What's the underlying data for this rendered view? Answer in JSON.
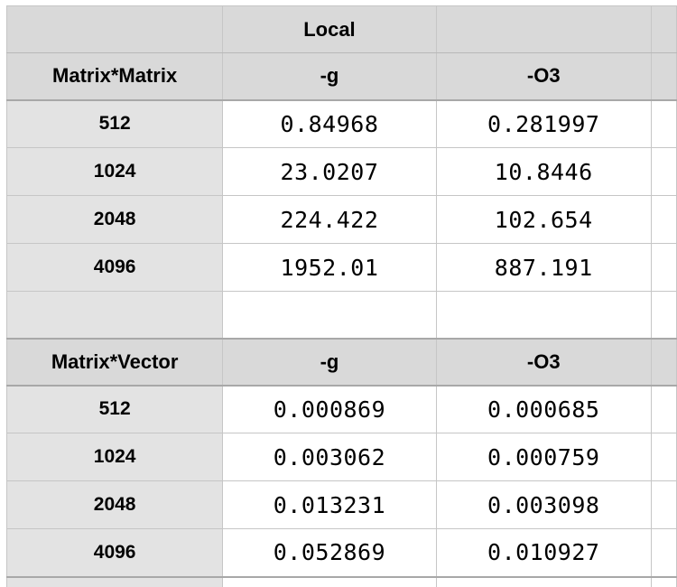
{
  "table": {
    "top_header": {
      "label": "",
      "col_g": "Local",
      "col_o3": ""
    },
    "sections": [
      {
        "title": "Matrix*Matrix",
        "col_g": "-g",
        "col_o3": "-O3",
        "rows": [
          {
            "size": "512",
            "g": "0.84968",
            "o3": "0.281997"
          },
          {
            "size": "1024",
            "g": "23.0207",
            "o3": "10.8446"
          },
          {
            "size": "2048",
            "g": "224.422",
            "o3": "102.654"
          },
          {
            "size": "4096",
            "g": "1952.01",
            "o3": "887.191"
          }
        ]
      },
      {
        "title": "Matrix*Vector",
        "col_g": "-g",
        "col_o3": "-O3",
        "rows": [
          {
            "size": "512",
            "g": "0.000869",
            "o3": "0.000685"
          },
          {
            "size": "1024",
            "g": "0.003062",
            "o3": "0.000759"
          },
          {
            "size": "2048",
            "g": "0.013231",
            "o3": "0.003098"
          },
          {
            "size": "4096",
            "g": "0.052869",
            "o3": "0.010927"
          }
        ]
      }
    ]
  }
}
